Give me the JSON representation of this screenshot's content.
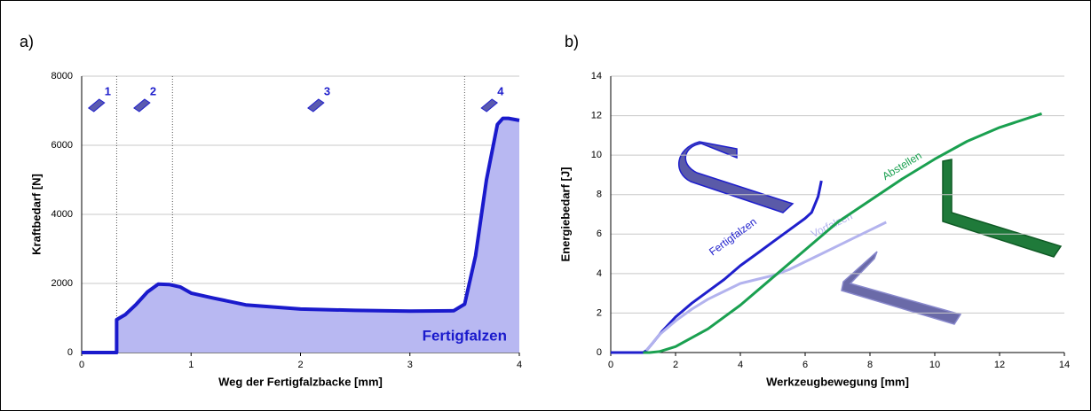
{
  "chart_data": [
    {
      "type": "area",
      "panel_label": "a)",
      "xlabel": "Weg der Fertigfalzbacke [mm]",
      "ylabel": "Kraftbedarf [N]",
      "xlim": [
        0,
        4
      ],
      "xticks": [
        0,
        1,
        2,
        3,
        4
      ],
      "ylim": [
        0,
        8000
      ],
      "yticks": [
        0,
        2000,
        4000,
        6000,
        8000
      ],
      "grid": true,
      "vlines": [
        0.32,
        0.83,
        3.5
      ],
      "phase_labels": [
        "1",
        "2",
        "3",
        "4"
      ],
      "series": [
        {
          "name": "Fertigfalzen",
          "color": "#1a1acc",
          "fill": "#b8b8f2",
          "x": [
            0,
            0.3,
            0.32,
            0.32,
            0.4,
            0.5,
            0.6,
            0.7,
            0.8,
            0.9,
            1.0,
            1.2,
            1.5,
            2.0,
            2.5,
            3.0,
            3.4,
            3.5,
            3.6,
            3.7,
            3.8,
            3.85,
            3.9,
            4.0
          ],
          "values": [
            0,
            0,
            0,
            950,
            1100,
            1400,
            1750,
            1980,
            1970,
            1900,
            1720,
            1580,
            1380,
            1260,
            1220,
            1200,
            1210,
            1400,
            2800,
            5000,
            6600,
            6780,
            6780,
            6720
          ]
        }
      ]
    },
    {
      "type": "line",
      "panel_label": "b)",
      "xlabel": "Werkzeugbewegung [mm]",
      "ylabel": "Energiebedarf [J]",
      "xlim": [
        0,
        14
      ],
      "xticks": [
        0,
        2,
        4,
        6,
        8,
        10,
        12,
        14
      ],
      "ylim": [
        0,
        14
      ],
      "yticks": [
        0,
        2,
        4,
        6,
        8,
        10,
        12,
        14
      ],
      "grid": true,
      "series": [
        {
          "name": "Fertigfalzen",
          "color": "#1f1fcc",
          "x": [
            0,
            1,
            1.1,
            1.3,
            1.6,
            2,
            2.5,
            3,
            3.5,
            4,
            4.5,
            5,
            5.5,
            6,
            6.2,
            6.4,
            6.5
          ],
          "values": [
            0,
            0,
            0.1,
            0.5,
            1.1,
            1.8,
            2.5,
            3.1,
            3.7,
            4.4,
            5,
            5.6,
            6.2,
            6.8,
            7.1,
            7.9,
            8.7
          ]
        },
        {
          "name": "Vorfalzen",
          "color": "#b3b3ee",
          "x": [
            1.1,
            1.5,
            2,
            2.5,
            3,
            3.5,
            4,
            4.5,
            5,
            5.5,
            6,
            6.5,
            7,
            7.5,
            8,
            8.5
          ],
          "values": [
            0.1,
            0.9,
            1.6,
            2.2,
            2.7,
            3.1,
            3.5,
            3.7,
            3.9,
            4.2,
            4.6,
            5,
            5.4,
            5.8,
            6.2,
            6.6
          ]
        },
        {
          "name": "Abstellen",
          "color": "#1aa050",
          "x": [
            1,
            1.2,
            1.5,
            2,
            3,
            4,
            5,
            6,
            7,
            8,
            9,
            10,
            11,
            12,
            13.3
          ],
          "values": [
            0,
            0,
            0.05,
            0.3,
            1.2,
            2.4,
            3.8,
            5.2,
            6.6,
            7.7,
            8.8,
            9.8,
            10.7,
            11.4,
            12.1
          ]
        }
      ]
    }
  ]
}
